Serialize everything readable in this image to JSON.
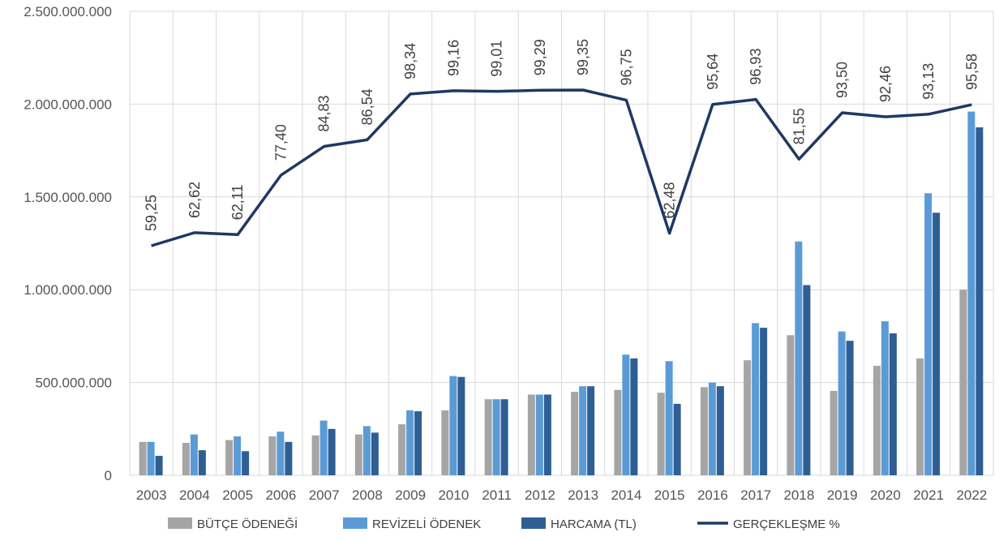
{
  "chart_data": {
    "type": "bar",
    "categories": [
      "2003",
      "2004",
      "2005",
      "2006",
      "2007",
      "2008",
      "2009",
      "2010",
      "2011",
      "2012",
      "2013",
      "2014",
      "2015",
      "2016",
      "2017",
      "2018",
      "2019",
      "2020",
      "2021",
      "2022"
    ],
    "ylim": [
      0,
      2500000000
    ],
    "y_ticks": [
      0,
      500000000,
      1000000000,
      1500000000,
      2000000000,
      2500000000
    ],
    "y_tick_labels": [
      "0",
      "500.000.000",
      "1.000.000.000",
      "1.500.000.000",
      "2.000.000.000",
      "2.500.000.000"
    ],
    "grid": true,
    "legend_position": "bottom",
    "series": [
      {
        "name": "BÜTÇE ÖDENEĞİ",
        "type": "bar",
        "color": "#a5a5a5",
        "values": [
          180000000,
          175000000,
          190000000,
          210000000,
          215000000,
          220000000,
          275000000,
          350000000,
          410000000,
          435000000,
          450000000,
          460000000,
          445000000,
          475000000,
          620000000,
          755000000,
          455000000,
          590000000,
          630000000,
          1000000000
        ]
      },
      {
        "name": "REVİZELİ ÖDENEK",
        "type": "bar",
        "color": "#5b9bd5",
        "values": [
          180000000,
          220000000,
          210000000,
          235000000,
          295000000,
          265000000,
          350000000,
          535000000,
          410000000,
          435000000,
          480000000,
          650000000,
          615000000,
          500000000,
          820000000,
          1260000000,
          775000000,
          830000000,
          1520000000,
          1960000000
        ]
      },
      {
        "name": "HARCAMA (TL)",
        "type": "bar",
        "color": "#2e5f94",
        "values": [
          105000000,
          135000000,
          130000000,
          180000000,
          250000000,
          230000000,
          345000000,
          530000000,
          410000000,
          435000000,
          480000000,
          630000000,
          385000000,
          480000000,
          795000000,
          1025000000,
          725000000,
          765000000,
          1415000000,
          1875000000
        ]
      },
      {
        "name": "GERÇEKLEŞME %",
        "type": "line",
        "color": "#1f3864",
        "values": [
          59.25,
          62.62,
          62.11,
          77.4,
          84.83,
          86.54,
          98.34,
          99.16,
          99.01,
          99.29,
          99.35,
          96.75,
          62.48,
          95.64,
          96.93,
          81.55,
          93.5,
          92.46,
          93.13,
          95.58
        ],
        "labels": [
          "59,25",
          "62,62",
          "62,11",
          "77,40",
          "84,83",
          "86,54",
          "98,34",
          "99,16",
          "99,01",
          "99,29",
          "99,35",
          "96,75",
          "62,48",
          "95,64",
          "96,93",
          "81,55",
          "93,50",
          "92,46",
          "93,13",
          "95,58"
        ]
      }
    ]
  }
}
